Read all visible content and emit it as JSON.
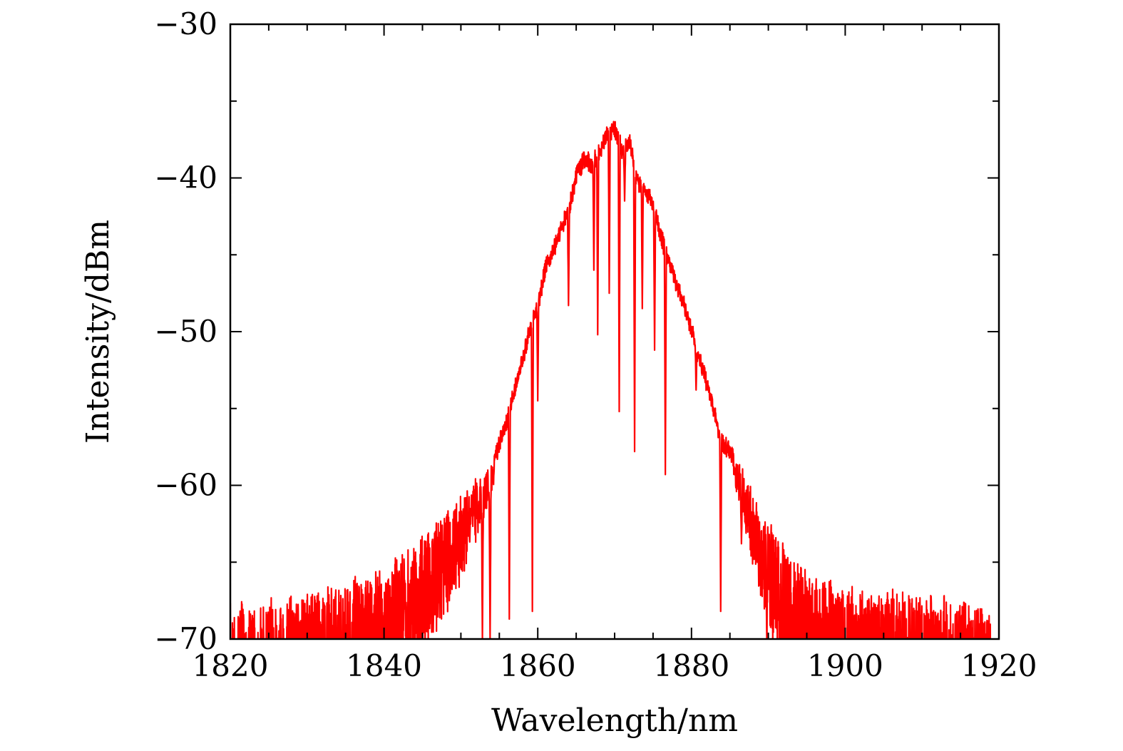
{
  "chart_data": {
    "type": "line",
    "title": "",
    "xlabel": "Wavelength/nm",
    "ylabel": "Intensity/dBm",
    "xlim": [
      1820,
      1920
    ],
    "ylim": [
      -70,
      -30
    ],
    "x_ticks": [
      1820,
      1840,
      1860,
      1880,
      1900,
      1920
    ],
    "x_tick_labels": [
      "1820",
      "1840",
      "1860",
      "1880",
      "1900",
      "1920"
    ],
    "y_ticks": [
      -70,
      -60,
      -50,
      -40,
      -30
    ],
    "y_tick_labels": [
      "−70",
      "−60",
      "−50",
      "−40",
      "−30"
    ],
    "x_minor_step": 5,
    "y_minor_step": 5,
    "grid": false,
    "legend": "none",
    "series_color": "#ff0000",
    "series": [
      {
        "name": "",
        "envelope": {
          "x": [
            1820,
            1830,
            1838,
            1842,
            1845,
            1848,
            1850,
            1852,
            1854,
            1856,
            1858,
            1859,
            1860,
            1861,
            1862,
            1863,
            1864,
            1865,
            1866,
            1867,
            1868,
            1869,
            1870,
            1871,
            1872,
            1873,
            1874,
            1875,
            1876,
            1877,
            1878,
            1879,
            1880,
            1881,
            1882,
            1883,
            1884,
            1885,
            1886,
            1888,
            1890,
            1893,
            1896,
            1900,
            1910,
            1919
          ],
          "y": [
            -68,
            -67.2,
            -66,
            -64.8,
            -63.2,
            -62,
            -61,
            -59.8,
            -58.5,
            -55.5,
            -51.5,
            -49.5,
            -48,
            -45.5,
            -44.5,
            -43,
            -42,
            -39.5,
            -38.5,
            -38.8,
            -38,
            -37,
            -36.5,
            -38,
            -37.5,
            -40,
            -40.5,
            -41.5,
            -43.5,
            -45,
            -46.5,
            -48,
            -49.5,
            -51.5,
            -53,
            -55,
            -57,
            -57.5,
            -58.5,
            -60.5,
            -62.5,
            -64.5,
            -66,
            -66.8,
            -67.3,
            -67.8
          ]
        },
        "dips": [
          {
            "x": 1852.8,
            "y": -70
          },
          {
            "x": 1853.8,
            "y": -70
          },
          {
            "x": 1856.3,
            "y": -68.7
          },
          {
            "x": 1859.3,
            "y": -68.2
          },
          {
            "x": 1860.0,
            "y": -54.5
          },
          {
            "x": 1864.0,
            "y": -48.3
          },
          {
            "x": 1867.3,
            "y": -46
          },
          {
            "x": 1867.8,
            "y": -50.2
          },
          {
            "x": 1869.3,
            "y": -47.5
          },
          {
            "x": 1870.6,
            "y": -55.2
          },
          {
            "x": 1871.3,
            "y": -41.5
          },
          {
            "x": 1872.6,
            "y": -57.8
          },
          {
            "x": 1873.6,
            "y": -48.5
          },
          {
            "x": 1875.2,
            "y": -51.2
          },
          {
            "x": 1876.6,
            "y": -59.3
          },
          {
            "x": 1880.6,
            "y": -53.8
          },
          {
            "x": 1883.8,
            "y": -68.2
          },
          {
            "x": 1886.5,
            "y": -63.8
          },
          {
            "x": 1889.8,
            "y": -70
          },
          {
            "x": 1891.5,
            "y": -70
          }
        ]
      }
    ]
  }
}
